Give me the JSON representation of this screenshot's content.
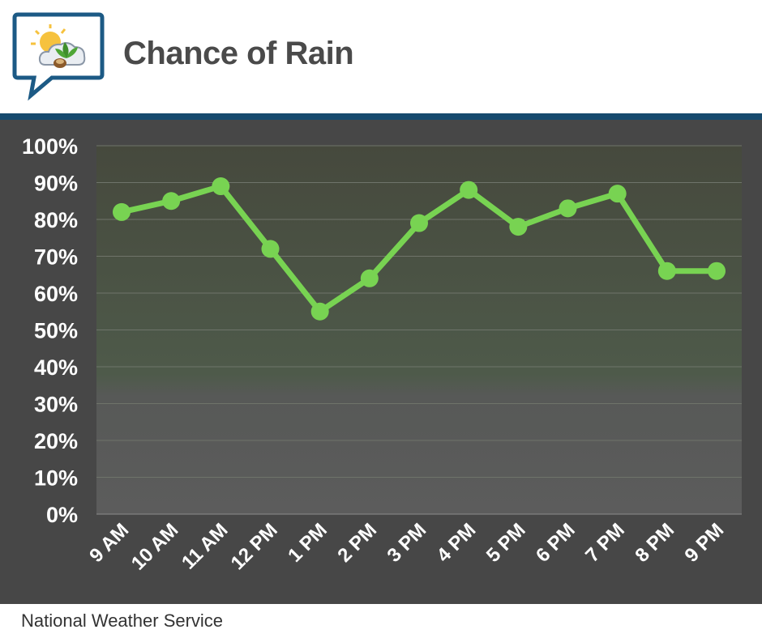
{
  "header": {
    "title": "Chance of Rain",
    "logo_icon": "weather-sun-cloud-leaf-icon"
  },
  "footer": {
    "source": "National Weather Service"
  },
  "colors": {
    "line": "#78d352",
    "rule": "#174a6e",
    "panel": "#474747"
  },
  "chart_data": {
    "type": "line",
    "title": "Chance of Rain",
    "xlabel": "",
    "ylabel": "",
    "categories": [
      "9 AM",
      "10 AM",
      "11 AM",
      "12 PM",
      "1 PM",
      "2 PM",
      "3 PM",
      "4 PM",
      "5 PM",
      "6 PM",
      "7 PM",
      "8 PM",
      "9 PM"
    ],
    "series": [
      {
        "values": [
          82,
          85,
          89,
          72,
          55,
          64,
          79,
          88,
          78,
          83,
          87,
          66,
          66
        ]
      }
    ],
    "ylim": [
      0,
      100
    ],
    "yticks": [
      "0%",
      "10%",
      "20%",
      "30%",
      "40%",
      "50%",
      "60%",
      "70%",
      "80%",
      "90%",
      "100%"
    ],
    "grid": true,
    "legend": "none"
  }
}
